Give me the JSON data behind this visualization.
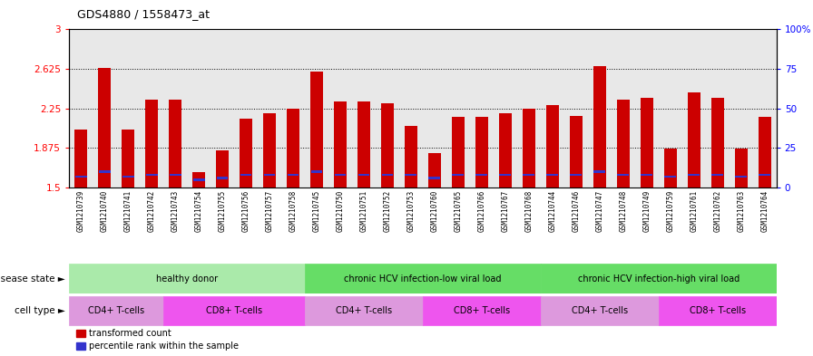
{
  "title": "GDS4880 / 1558473_at",
  "samples": [
    "GSM1210739",
    "GSM1210740",
    "GSM1210741",
    "GSM1210742",
    "GSM1210743",
    "GSM1210754",
    "GSM1210755",
    "GSM1210756",
    "GSM1210757",
    "GSM1210758",
    "GSM1210745",
    "GSM1210750",
    "GSM1210751",
    "GSM1210752",
    "GSM1210753",
    "GSM1210760",
    "GSM1210765",
    "GSM1210766",
    "GSM1210767",
    "GSM1210768",
    "GSM1210744",
    "GSM1210746",
    "GSM1210747",
    "GSM1210748",
    "GSM1210749",
    "GSM1210759",
    "GSM1210761",
    "GSM1210762",
    "GSM1210763",
    "GSM1210764"
  ],
  "transformed_count": [
    2.05,
    2.63,
    2.05,
    2.33,
    2.33,
    1.65,
    1.85,
    2.15,
    2.2,
    2.25,
    2.6,
    2.32,
    2.32,
    2.3,
    2.08,
    1.83,
    2.17,
    2.17,
    2.2,
    2.25,
    2.28,
    2.18,
    2.65,
    2.33,
    2.35,
    1.87,
    2.4,
    2.35,
    1.87,
    2.17
  ],
  "percentile_rank": [
    7,
    10,
    7,
    8,
    8,
    5,
    6,
    8,
    8,
    8,
    10,
    8,
    8,
    8,
    8,
    6,
    8,
    8,
    8,
    8,
    8,
    8,
    10,
    8,
    8,
    7,
    8,
    8,
    7,
    8
  ],
  "bar_bottom": 1.5,
  "ylim_left": [
    1.5,
    3.0
  ],
  "ylim_right": [
    0,
    100
  ],
  "yticks_left": [
    1.5,
    1.875,
    2.25,
    2.625,
    3.0
  ],
  "yticks_right": [
    0,
    25,
    50,
    75,
    100
  ],
  "ytick_labels_left": [
    "1.5",
    "1.875",
    "2.25",
    "2.625",
    "3"
  ],
  "ytick_labels_right": [
    "0",
    "25",
    "50",
    "75",
    "100%"
  ],
  "dotted_lines": [
    1.875,
    2.25,
    2.625
  ],
  "bar_color": "#CC0000",
  "blue_color": "#3333CC",
  "plot_bg_color": "#E8E8E8",
  "xlabel_bg_color": "#CCCCCC",
  "disease_groups": [
    {
      "label": "healthy donor",
      "start": 0,
      "end": 9,
      "color": "#AAEAAA"
    },
    {
      "label": "chronic HCV infection-low viral load",
      "start": 10,
      "end": 19,
      "color": "#66DD66"
    },
    {
      "label": "chronic HCV infection-high viral load",
      "start": 20,
      "end": 29,
      "color": "#66DD66"
    }
  ],
  "cell_type_groups": [
    {
      "label": "CD4+ T-cells",
      "start": 0,
      "end": 3,
      "color": "#DD99DD"
    },
    {
      "label": "CD8+ T-cells",
      "start": 4,
      "end": 9,
      "color": "#EE66EE"
    },
    {
      "label": "CD4+ T-cells",
      "start": 10,
      "end": 14,
      "color": "#DD99DD"
    },
    {
      "label": "CD8+ T-cells",
      "start": 15,
      "end": 19,
      "color": "#EE66EE"
    },
    {
      "label": "CD4+ T-cells",
      "start": 20,
      "end": 24,
      "color": "#DD99DD"
    },
    {
      "label": "CD8+ T-cells",
      "start": 25,
      "end": 29,
      "color": "#EE66EE"
    }
  ],
  "disease_state_label": "disease state",
  "cell_type_label": "cell type",
  "legend_items": [
    {
      "label": "transformed count",
      "color": "#CC0000"
    },
    {
      "label": "percentile rank within the sample",
      "color": "#3333CC"
    }
  ],
  "bar_width": 0.55
}
